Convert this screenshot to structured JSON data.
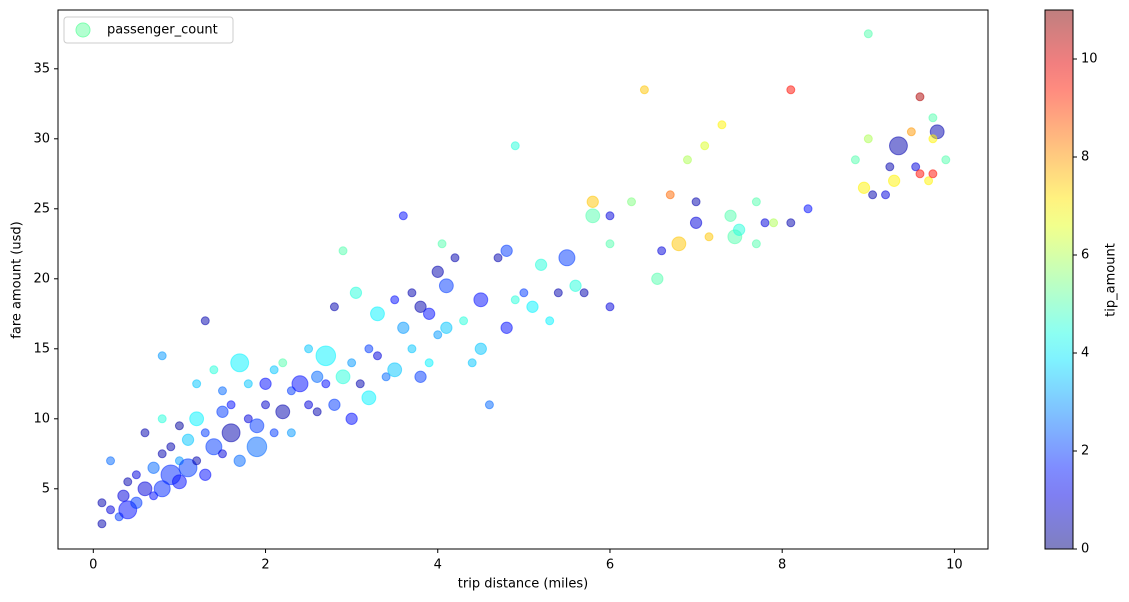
{
  "chart_data": {
    "type": "scatter",
    "xlabel": "trip distance (miles)",
    "ylabel": "fare amount (usd)",
    "xlim": [
      -0.41,
      10.39
    ],
    "xticks": [
      0,
      2,
      4,
      6,
      8,
      10
    ],
    "ylim": [
      0.7,
      39.2
    ],
    "yticks": [
      5,
      10,
      15,
      20,
      25,
      30,
      35
    ],
    "legend": "upper left",
    "opacity": 0.5,
    "colorbar": {
      "label": "tip_amount",
      "colormap": "jet",
      "lim": [
        0,
        11
      ],
      "ticks": [
        0,
        2,
        4,
        6,
        8,
        10
      ]
    },
    "series": [
      {
        "name": "passenger_count",
        "x": [
          0.1,
          0.1,
          0.2,
          0.2,
          0.3,
          0.35,
          0.4,
          0.4,
          0.5,
          0.5,
          0.6,
          0.6,
          0.7,
          0.7,
          0.8,
          0.8,
          0.8,
          0.8,
          0.9,
          0.9,
          1.0,
          1.0,
          1.0,
          1.1,
          1.1,
          1.2,
          1.2,
          1.2,
          1.3,
          1.3,
          1.3,
          1.4,
          1.4,
          1.5,
          1.5,
          1.5,
          1.6,
          1.6,
          1.7,
          1.7,
          1.8,
          1.8,
          1.9,
          1.9,
          2.0,
          2.0,
          2.1,
          2.1,
          2.2,
          2.2,
          2.3,
          2.3,
          2.4,
          2.5,
          2.5,
          2.6,
          2.6,
          2.7,
          2.7,
          2.8,
          2.8,
          2.9,
          2.9,
          3.0,
          3.0,
          3.05,
          3.1,
          3.2,
          3.2,
          3.3,
          3.3,
          3.4,
          3.5,
          3.5,
          3.6,
          3.6,
          3.7,
          3.7,
          3.8,
          3.8,
          3.9,
          3.9,
          4.0,
          4.0,
          4.05,
          4.1,
          4.1,
          4.2,
          4.3,
          4.4,
          4.5,
          4.5,
          4.6,
          4.7,
          4.8,
          4.8,
          4.9,
          4.9,
          5.0,
          5.1,
          5.2,
          5.3,
          5.4,
          5.5,
          5.6,
          5.7,
          5.8,
          5.8,
          6.0,
          6.0,
          6.0,
          6.25,
          6.4,
          6.55,
          6.6,
          6.7,
          6.8,
          6.9,
          7.0,
          7.0,
          7.1,
          7.15,
          7.3,
          7.4,
          7.45,
          7.5,
          7.7,
          7.7,
          7.8,
          7.9,
          8.1,
          8.1,
          8.3,
          8.85,
          8.95,
          9.0,
          9.0,
          9.05,
          9.2,
          9.25,
          9.3,
          9.35,
          9.5,
          9.55,
          9.6,
          9.6,
          9.7,
          9.75,
          9.75,
          9.8,
          9.75,
          9.9
        ],
        "values": [
          2.5,
          4,
          3.5,
          7,
          3,
          4.5,
          3.5,
          5.5,
          4,
          6,
          5,
          9,
          4.5,
          6.5,
          5,
          7.5,
          14.5,
          10,
          6,
          8,
          5.5,
          7,
          9.5,
          6.5,
          8.5,
          7,
          10,
          12.5,
          6,
          9,
          17,
          8,
          13.5,
          7.5,
          10.5,
          12,
          9,
          11,
          14,
          7,
          10,
          12.5,
          9.5,
          8,
          11,
          12.5,
          9,
          13.5,
          10.5,
          14,
          12,
          9,
          12.5,
          11,
          15,
          13,
          10.5,
          14.5,
          12.5,
          18,
          11,
          13,
          22,
          10,
          14,
          19,
          12.5,
          15,
          11.5,
          17.5,
          14.5,
          13,
          18.5,
          13.5,
          24.5,
          16.5,
          19,
          15,
          18,
          13,
          17.5,
          14,
          20.5,
          16,
          22.5,
          19.5,
          16.5,
          21.5,
          17,
          14,
          18.5,
          15,
          11,
          21.5,
          22,
          16.5,
          29.5,
          18.5,
          19,
          18,
          21,
          17,
          19,
          21.5,
          19.5,
          19,
          25.5,
          24.5,
          22.5,
          24.5,
          18,
          25.5,
          33.5,
          20,
          22,
          26,
          22.5,
          28.5,
          24,
          25.5,
          29.5,
          23,
          31,
          24.5,
          23,
          23.5,
          22.5,
          25.5,
          24,
          24,
          33.5,
          24,
          25,
          28.5,
          26.5,
          37.5,
          30,
          26,
          26,
          28,
          27,
          29.5,
          30.5,
          28,
          27.5,
          33,
          27,
          31.5,
          27.5,
          30.5,
          30,
          28.5
        ],
        "sizes": [
          1,
          1,
          1,
          1,
          1,
          2,
          5,
          1,
          2,
          1,
          3,
          1,
          1,
          2,
          4,
          1,
          1,
          1,
          6,
          1,
          3,
          1,
          1,
          5,
          2,
          1,
          3,
          1,
          2,
          1,
          1,
          4,
          1,
          1,
          2,
          1,
          5,
          1,
          5,
          2,
          1,
          1,
          3,
          6,
          1,
          2,
          1,
          1,
          3,
          1,
          1,
          1,
          4,
          1,
          1,
          2,
          1,
          6,
          1,
          1,
          2,
          3,
          1,
          2,
          1,
          2,
          1,
          1,
          3,
          3,
          1,
          1,
          1,
          3,
          1,
          2,
          1,
          1,
          2,
          2,
          2,
          1,
          2,
          1,
          1,
          3,
          2,
          1,
          1,
          1,
          3,
          2,
          1,
          1,
          2,
          2,
          1,
          1,
          1,
          2,
          2,
          1,
          1,
          4,
          2,
          1,
          2,
          3,
          1,
          1,
          1,
          1,
          1,
          2,
          1,
          1,
          3,
          1,
          2,
          1,
          1,
          1,
          1,
          2,
          3,
          2,
          1,
          1,
          1,
          1,
          1,
          1,
          1,
          1,
          2,
          1,
          1,
          1,
          1,
          1,
          2,
          5,
          1,
          1,
          1,
          1,
          1,
          1,
          1,
          3,
          1,
          1
        ],
        "tip_amount": [
          0.5,
          0.5,
          1,
          2.5,
          2,
          1,
          1.5,
          0.5,
          2,
          1,
          1,
          0.5,
          1.5,
          2.5,
          1.8,
          0.5,
          3,
          4.5,
          1.8,
          0.5,
          1.5,
          3,
          0.3,
          2,
          3.5,
          0.5,
          4,
          3.5,
          1.5,
          2,
          0.5,
          2,
          4.5,
          1,
          2,
          2.5,
          0.5,
          1.5,
          4,
          2.5,
          1,
          3.5,
          2,
          2.5,
          0.8,
          1.5,
          2,
          3.5,
          0.5,
          5,
          2,
          3,
          1.5,
          1,
          3.5,
          2.5,
          0.5,
          4,
          1.5,
          0.5,
          2,
          4.5,
          5,
          1.5,
          3,
          4.5,
          0.5,
          2,
          4,
          4,
          1,
          2.5,
          1.5,
          3.5,
          1.5,
          3,
          0.5,
          3.5,
          0.5,
          2,
          1.5,
          4,
          0.5,
          3,
          5,
          2,
          3.5,
          0.5,
          4.5,
          3.5,
          1.5,
          3.5,
          2.5,
          0.5,
          2,
          1.5,
          4.5,
          4.5,
          2,
          4,
          4.5,
          4,
          0.5,
          2,
          4.5,
          0.5,
          7.5,
          5,
          5,
          1,
          1,
          5.5,
          7.5,
          5,
          1,
          8.5,
          7.5,
          6,
          1,
          0.5,
          6.5,
          7.5,
          7,
          5,
          5,
          4.5,
          5,
          5,
          1,
          6,
          9.5,
          0.5,
          1.5,
          5,
          7,
          5,
          6,
          0.5,
          1,
          0.5,
          7,
          0.5,
          8,
          1,
          9.5,
          10.5,
          7,
          5,
          9.5,
          0.5,
          7,
          5
        ]
      }
    ]
  }
}
